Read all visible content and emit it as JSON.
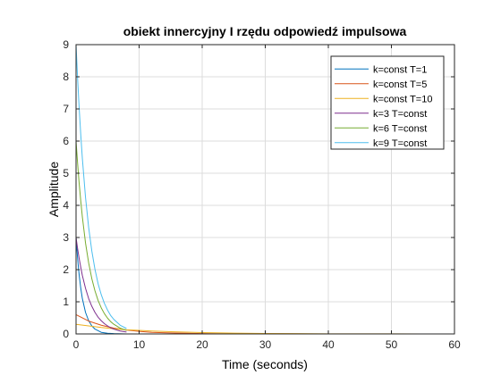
{
  "chart_data": {
    "type": "line",
    "title": "obiekt innercyjny I rzędu odpowiedź impulsowa",
    "xlabel": "Time (seconds)",
    "ylabel": "Amplitude",
    "xlim": [
      0,
      60
    ],
    "ylim": [
      0,
      9
    ],
    "xticks": [
      0,
      10,
      20,
      30,
      40,
      50,
      60
    ],
    "yticks": [
      0,
      1,
      2,
      3,
      4,
      5,
      6,
      7,
      8,
      9
    ],
    "grid": true,
    "legend_position": "top-right",
    "series": [
      {
        "name": "k=const T=1",
        "color": "#0072BD",
        "x": [
          0,
          0.25,
          0.5,
          0.75,
          1,
          1.5,
          2,
          2.5,
          3,
          4,
          5,
          6,
          8
        ],
        "y": [
          3,
          2.34,
          1.82,
          1.42,
          1.1,
          0.67,
          0.41,
          0.25,
          0.15,
          0.05,
          0.02,
          0.01,
          0
        ]
      },
      {
        "name": "k=const T=5",
        "color": "#D95319",
        "x": [
          0,
          2,
          4,
          6,
          8,
          10,
          12,
          15,
          20,
          25,
          30,
          35,
          40,
          50,
          60
        ],
        "y": [
          0.6,
          0.4,
          0.27,
          0.18,
          0.12,
          0.08,
          0.05,
          0.03,
          0.01,
          0.004,
          0.002,
          0.001,
          0,
          0,
          0
        ]
      },
      {
        "name": "k=const T=10",
        "color": "#EDB120",
        "x": [
          0,
          2,
          4,
          6,
          8,
          10,
          12,
          15,
          20,
          25,
          30,
          35,
          40,
          45,
          50,
          55,
          60
        ],
        "y": [
          0.3,
          0.25,
          0.2,
          0.16,
          0.13,
          0.11,
          0.09,
          0.07,
          0.04,
          0.025,
          0.015,
          0.009,
          0.005,
          0.003,
          0.002,
          0.001,
          0.001
        ]
      },
      {
        "name": "k=3 T=const",
        "color": "#7E2F8E",
        "x": [
          0,
          0.25,
          0.5,
          0.75,
          1,
          1.5,
          2,
          2.5,
          3,
          3.5,
          4,
          4.5,
          5,
          5.5,
          6,
          7,
          8
        ],
        "y": [
          3,
          2.65,
          2.34,
          2.07,
          1.82,
          1.42,
          1.1,
          0.86,
          0.67,
          0.52,
          0.41,
          0.32,
          0.25,
          0.19,
          0.15,
          0.09,
          0.06
        ]
      },
      {
        "name": "k=6 T=const",
        "color": "#77AC30",
        "x": [
          0,
          0.25,
          0.5,
          0.75,
          1,
          1.5,
          2,
          2.5,
          3,
          3.5,
          4,
          4.5,
          5,
          5.5,
          6,
          7,
          8
        ],
        "y": [
          6,
          5.3,
          4.67,
          4.13,
          3.64,
          2.83,
          2.21,
          1.72,
          1.34,
          1.04,
          0.81,
          0.63,
          0.49,
          0.38,
          0.3,
          0.18,
          0.11
        ]
      },
      {
        "name": "k=9 T=const",
        "color": "#4DBEEE",
        "x": [
          0,
          0.25,
          0.5,
          0.75,
          1,
          1.5,
          2,
          2.5,
          3,
          3.5,
          4,
          4.5,
          5,
          5.5,
          6,
          7,
          8
        ],
        "y": [
          9,
          7.94,
          7.01,
          6.19,
          5.46,
          4.25,
          3.31,
          2.58,
          2.01,
          1.56,
          1.22,
          0.95,
          0.74,
          0.57,
          0.45,
          0.27,
          0.17
        ]
      }
    ]
  }
}
